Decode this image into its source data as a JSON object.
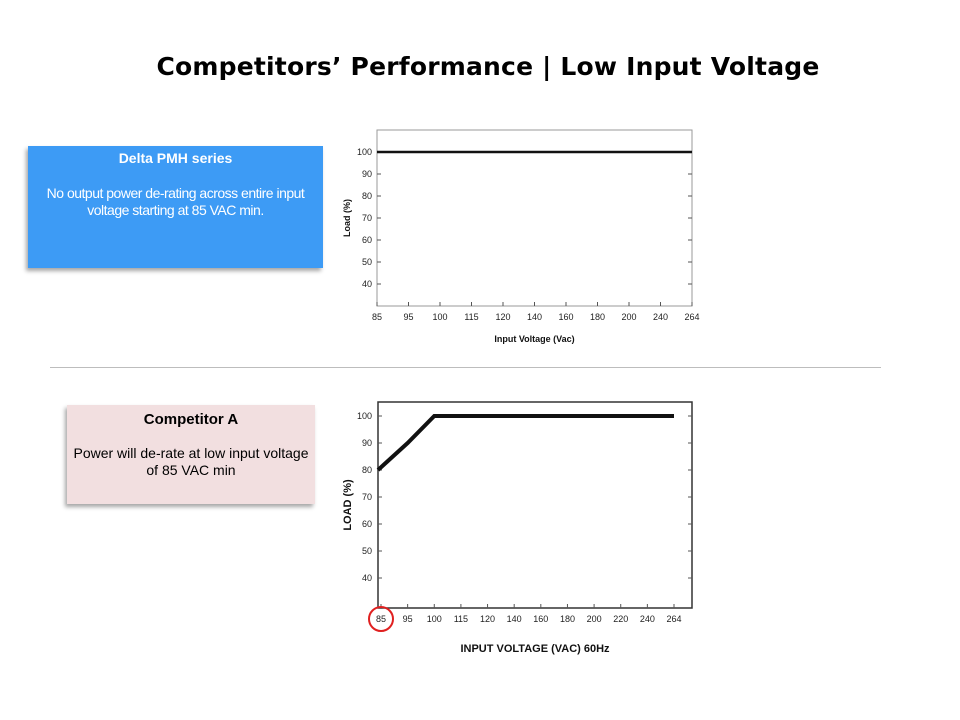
{
  "slide": {
    "title": "Competitors’ Performance | Low Input Voltage"
  },
  "cards": {
    "delta": {
      "title": "Delta PMH series",
      "body": "No output power de-rating across entire input voltage starting at 85 VAC min."
    },
    "competitor": {
      "title": "Competitor A",
      "body": "Power  will de-rate at low input voltage of 85 VAC min"
    }
  },
  "colors": {
    "delta_card": "#3d9bf5",
    "competitor_card": "#f2dfe0",
    "highlight_circle": "#e02020"
  },
  "chart_data": [
    {
      "type": "line",
      "title": "",
      "xlabel": "Input Voltage (Vac)",
      "ylabel": "Load (%)",
      "categories": [
        "85",
        "95",
        "100",
        "115",
        "120",
        "140",
        "160",
        "180",
        "200",
        "240",
        "264"
      ],
      "yticks": [
        40,
        50,
        60,
        70,
        80,
        90,
        100
      ],
      "ylim": [
        30,
        105
      ],
      "series": [
        {
          "values": [
            100,
            100,
            100,
            100,
            100,
            100,
            100,
            100,
            100,
            100,
            100
          ]
        }
      ],
      "grid": false
    },
    {
      "type": "line",
      "title": "",
      "xlabel": "INPUT VOLTAGE (VAC) 60Hz",
      "ylabel": "LOAD (%)",
      "categories": [
        "85",
        "95",
        "100",
        "115",
        "120",
        "140",
        "160",
        "180",
        "200",
        "220",
        "240",
        "264"
      ],
      "yticks": [
        40,
        50,
        60,
        70,
        80,
        90,
        100
      ],
      "ylim": [
        30,
        105
      ],
      "series": [
        {
          "values": [
            80,
            90,
            100,
            100,
            100,
            100,
            100,
            100,
            100,
            100,
            100,
            100
          ]
        }
      ],
      "highlighted_category": "85",
      "grid": false
    }
  ]
}
